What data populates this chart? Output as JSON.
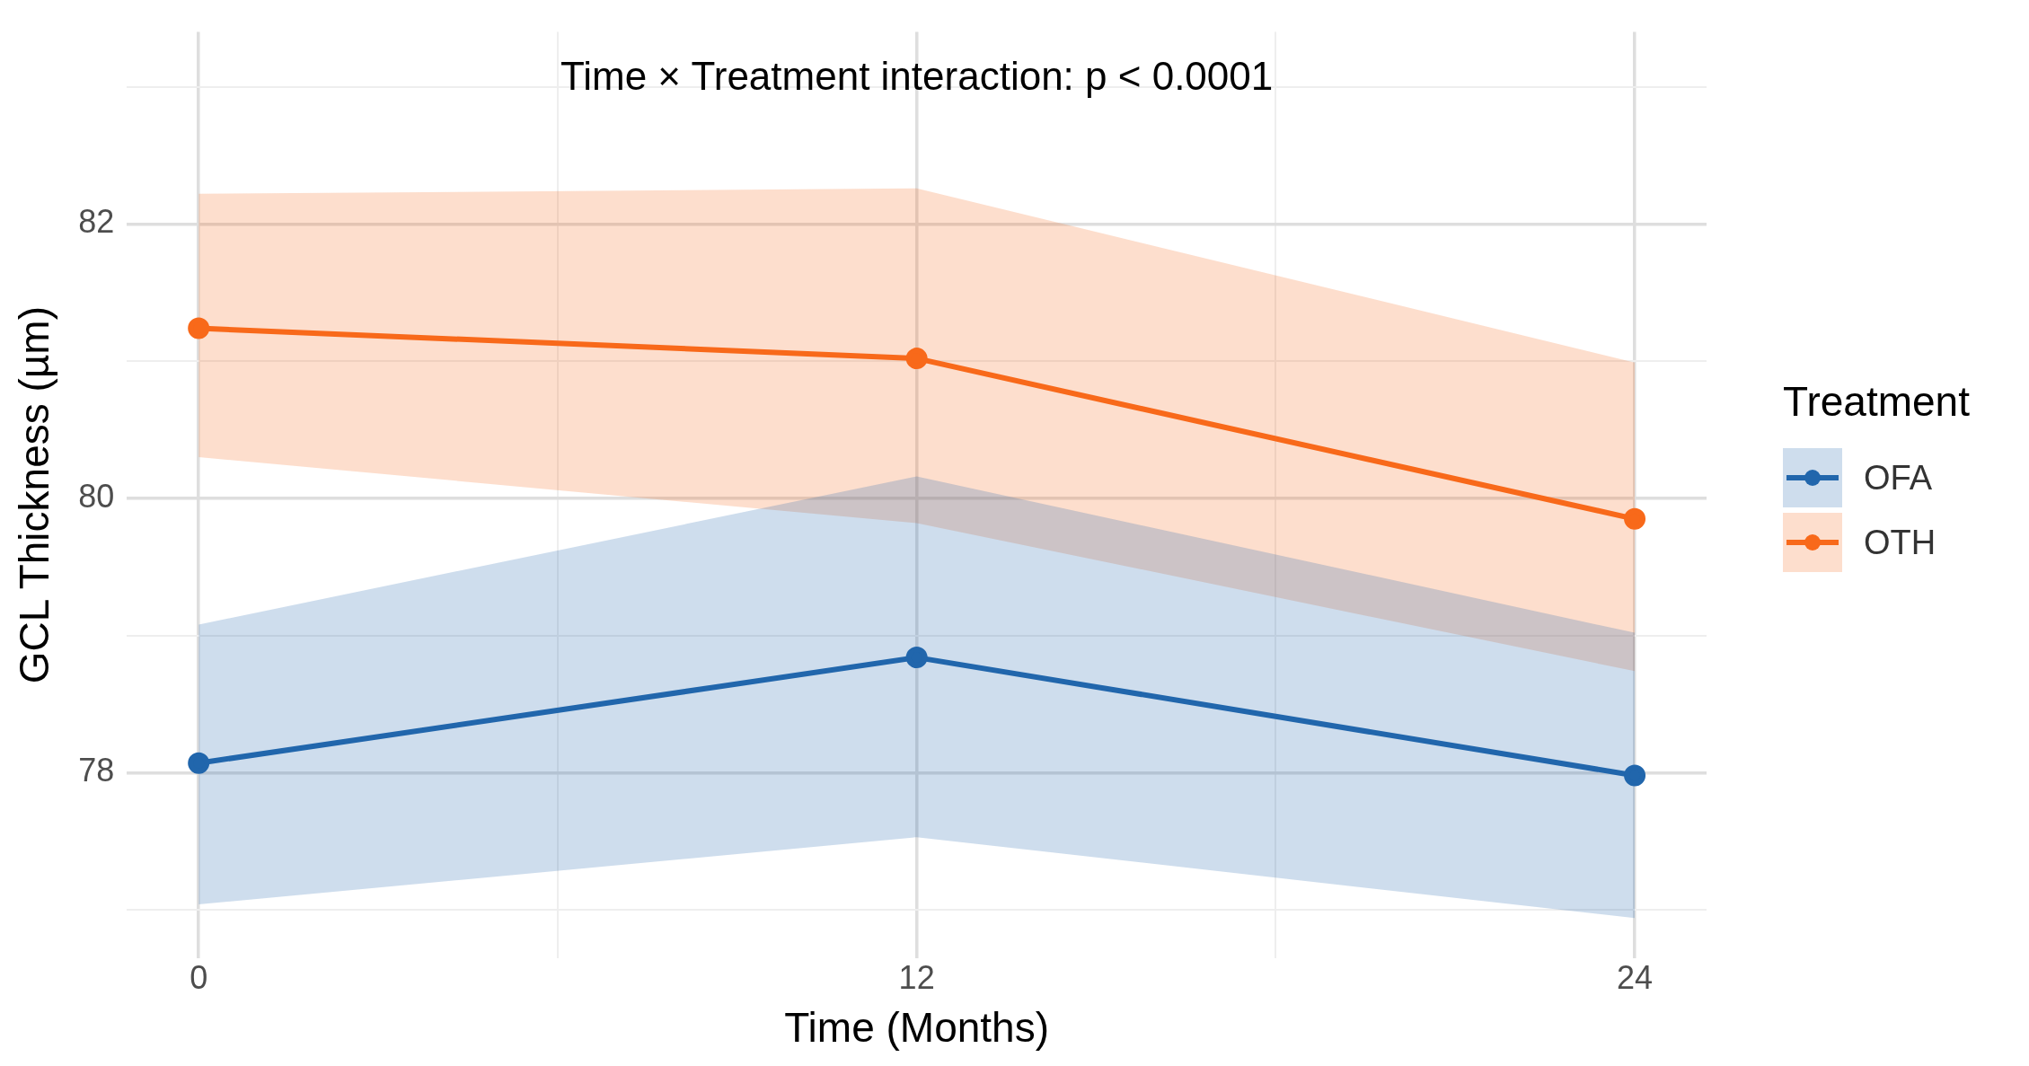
{
  "chart_data": {
    "type": "line",
    "xlabel": "Time (Months)",
    "ylabel": "GCL Thickness (µm)",
    "legend_title": "Treatment",
    "annotations": [
      "Time × Treatment interaction: p < 0.0001"
    ],
    "x": [
      0,
      12,
      24
    ],
    "series": [
      {
        "name": "OFA",
        "color": "#2166ac",
        "values": [
          78.07,
          78.84,
          77.98
        ],
        "lower": [
          77.04,
          77.53,
          76.94
        ],
        "upper": [
          79.08,
          80.16,
          79.02
        ]
      },
      {
        "name": "OTH",
        "color": "#f8691a",
        "values": [
          81.24,
          81.02,
          79.85
        ],
        "lower": [
          80.3,
          79.82,
          78.74
        ],
        "upper": [
          82.22,
          82.26,
          80.99
        ]
      }
    ],
    "xlim": [
      -1.2,
      25.2
    ],
    "ylim": [
      76.65,
      83.4
    ],
    "xticks": [
      0,
      {
        "value": 6,
        "label": null
      },
      12,
      {
        "value": 18,
        "label": null
      },
      24
    ],
    "yticks": [
      {
        "value": 77,
        "label": null
      },
      78,
      {
        "value": 79,
        "label": null
      },
      80,
      {
        "value": 81,
        "label": null
      },
      82,
      {
        "value": 83,
        "label": null
      }
    ],
    "grid": true,
    "legend": "right",
    "marker": "circle",
    "line_style": "solid"
  }
}
